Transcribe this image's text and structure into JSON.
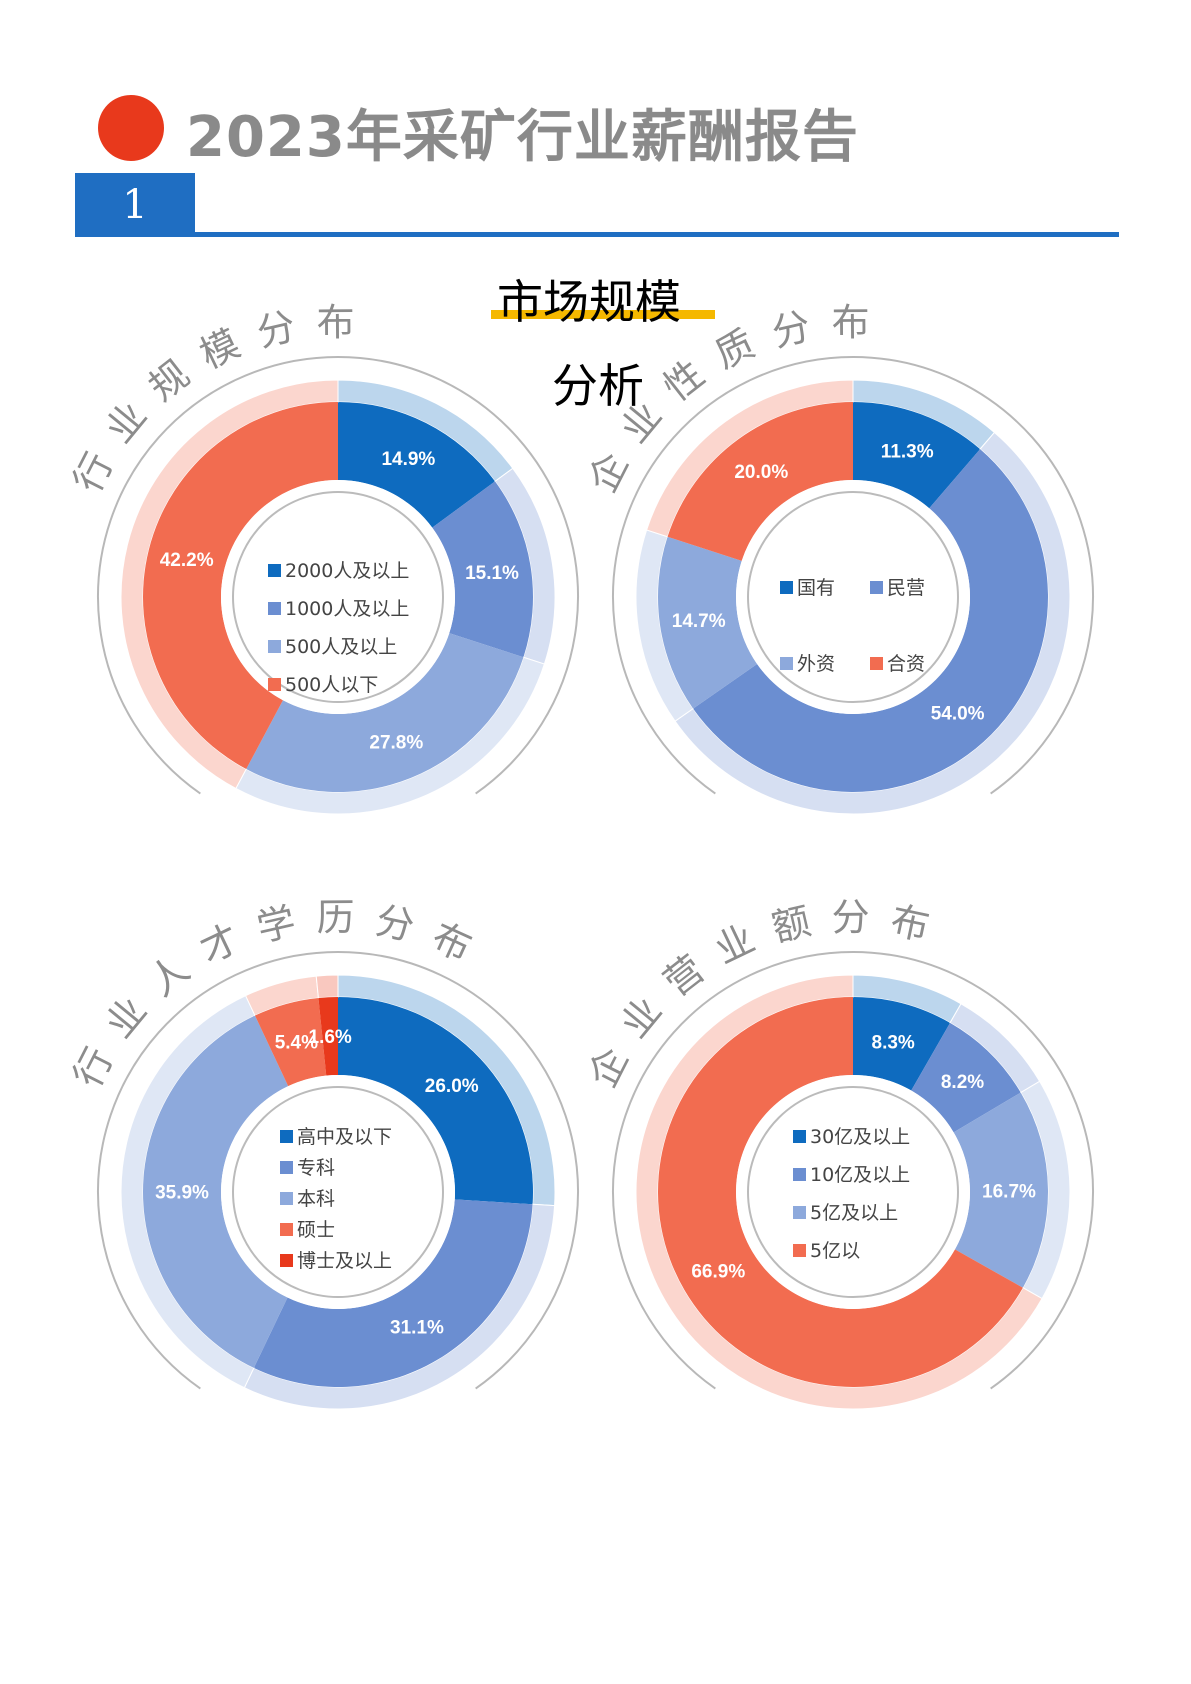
{
  "header": {
    "title": "2023年采矿行业薪酬报告",
    "section_number": "1",
    "colors": {
      "dot": "#e8391c",
      "blue": "#1f6ec2",
      "yellow": "#f5b800"
    }
  },
  "section": {
    "title_line1": "市场规模",
    "title_line2": "分析"
  },
  "chart_data": [
    {
      "type": "pie",
      "title": "行业规模分布",
      "categories": [
        "2000人及以上",
        "1000人及以上",
        "500人及以上",
        "500人以下"
      ],
      "values": [
        14.9,
        15.1,
        27.8,
        42.2
      ],
      "labels": [
        "14.9%",
        "15.1%",
        "27.8%",
        "42.2%"
      ],
      "colors": [
        "#0e6bbf",
        "#6b8ed1",
        "#8da9dc",
        "#f26c50"
      ]
    },
    {
      "type": "pie",
      "title": "企业性质分布",
      "categories": [
        "国有",
        "民营",
        "外资",
        "合资"
      ],
      "values": [
        11.3,
        54.0,
        14.7,
        20.0
      ],
      "labels": [
        "11.3%",
        "54.0%",
        "14.7%",
        "20.0%"
      ],
      "colors": [
        "#0e6bbf",
        "#6b8ed1",
        "#8da9dc",
        "#f26c50"
      ]
    },
    {
      "type": "pie",
      "title": "行业人才学历分布",
      "categories": [
        "高中及以下",
        "专科",
        "本科",
        "硕士",
        "博士及以上"
      ],
      "values": [
        26.0,
        31.1,
        35.9,
        5.4,
        1.6
      ],
      "labels": [
        "26.0%",
        "31.1%",
        "35.9%",
        "5.4%",
        "1.6%"
      ],
      "colors": [
        "#0e6bbf",
        "#6b8ed1",
        "#8da9dc",
        "#f26c50",
        "#e8391c"
      ]
    },
    {
      "type": "pie",
      "title": "企业营业额分布",
      "categories": [
        "30亿及以上",
        "10亿及以上",
        "5亿及以上",
        "5亿以"
      ],
      "values": [
        8.3,
        8.2,
        16.7,
        66.9
      ],
      "labels": [
        "8.3%",
        "8.2%",
        "16.7%",
        "66.9%"
      ],
      "colors": [
        "#0e6bbf",
        "#6b8ed1",
        "#8da9dc",
        "#f26c50"
      ]
    }
  ]
}
